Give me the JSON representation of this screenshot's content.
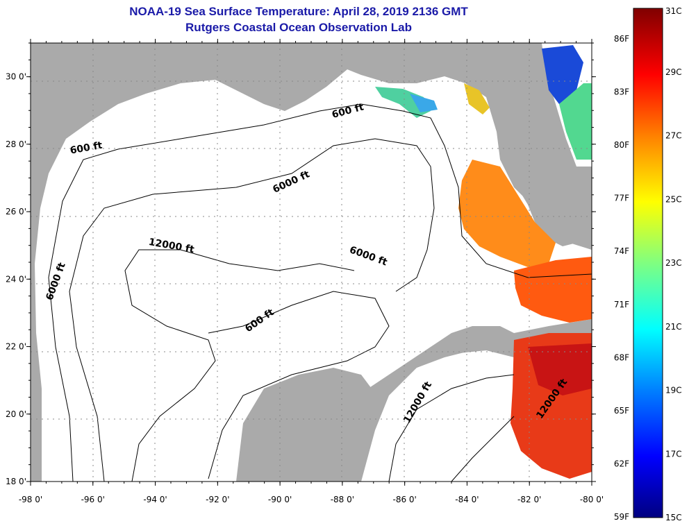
{
  "title": {
    "line1": "NOAA-19 Sea Surface Temperature:  April 28, 2019 2136 GMT",
    "line2": "Rutgers Coastal Ocean Observation Lab"
  },
  "map": {
    "lon_range": [
      -98,
      -80
    ],
    "lat_range": [
      18,
      31
    ],
    "lon_ticks": [
      "-98 0'",
      "-96 0'",
      "-94 0'",
      "-92 0'",
      "-90 0'",
      "-88 0'",
      "-86 0'",
      "-84 0'",
      "-82 0'",
      "-80 0'"
    ],
    "lat_ticks": [
      "30 0'",
      "28 0'",
      "26 0'",
      "24 0'",
      "22 0'",
      "20 0'",
      "18 0'"
    ],
    "colors": {
      "land": "#aaaaaa",
      "ocean": "#ffffff"
    },
    "contour_labels": [
      {
        "text": "600 ft",
        "lon": -96.2,
        "lat": 27.8
      },
      {
        "text": "600 ft",
        "lon": -87.8,
        "lat": 28.9
      },
      {
        "text": "6000 ft",
        "lon": -89.6,
        "lat": 26.8
      },
      {
        "text": "6000 ft",
        "lon": -97.1,
        "lat": 23.9
      },
      {
        "text": "6000 ft",
        "lon": -87.2,
        "lat": 24.6
      },
      {
        "text": "12000 ft",
        "lon": -93.5,
        "lat": 24.9
      },
      {
        "text": "600 ft",
        "lon": -90.6,
        "lat": 22.7
      },
      {
        "text": "12000 ft",
        "lon": -85.5,
        "lat": 20.3
      },
      {
        "text": "12000 ft",
        "lon": -81.2,
        "lat": 20.4
      }
    ]
  },
  "colorbar": {
    "stops": [
      "#000080",
      "#0000ff",
      "#0080ff",
      "#00ffff",
      "#80ff80",
      "#ffff00",
      "#ff8000",
      "#ff0000",
      "#800000"
    ],
    "celsius_ticks": [
      "31C",
      "29C",
      "27C",
      "25C",
      "23C",
      "21C",
      "19C",
      "17C",
      "15C"
    ],
    "fahrenheit_ticks": [
      "86F",
      "83F",
      "80F",
      "77F",
      "74F",
      "71F",
      "68F",
      "65F",
      "62F",
      "59F"
    ]
  }
}
